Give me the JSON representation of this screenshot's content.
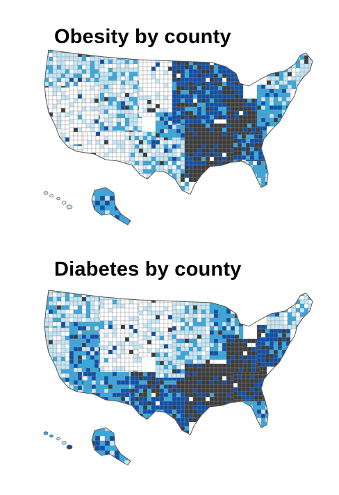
{
  "maps": [
    {
      "id": "obesity",
      "title": "Obesity by county",
      "palette": [
        "#ffffff",
        "#c6e6f6",
        "#36a9e1",
        "#0f4fa8",
        "#3c3c3c"
      ],
      "region_levels": {
        "pacific_nw": 1,
        "california": 0,
        "great_basin": 0,
        "rockies": 1,
        "southwest": 0,
        "texas": 1,
        "plains_north": 0,
        "plains_south": 2,
        "midwest": 3,
        "great_lakes": 3,
        "deep_south": 4,
        "southeast": 3,
        "florida": 2,
        "appalachia": 4,
        "mid_atlantic": 2,
        "northeast": 1,
        "alaska": 2,
        "hawaii": 1
      }
    },
    {
      "id": "diabetes",
      "title": "Diabetes by county",
      "palette": [
        "#ffffff",
        "#c6e6f6",
        "#36a9e1",
        "#0f4fa8",
        "#3c3c3c"
      ],
      "region_levels": {
        "pacific_nw": 1,
        "california": 1,
        "great_basin": 2,
        "rockies": 0,
        "southwest": 2,
        "texas": 3,
        "plains_north": 0,
        "plains_south": 1,
        "midwest": 1,
        "great_lakes": 2,
        "deep_south": 4,
        "southeast": 4,
        "florida": 2,
        "appalachia": 4,
        "mid_atlantic": 3,
        "northeast": 1,
        "alaska": 2,
        "hawaii": 1
      }
    }
  ]
}
